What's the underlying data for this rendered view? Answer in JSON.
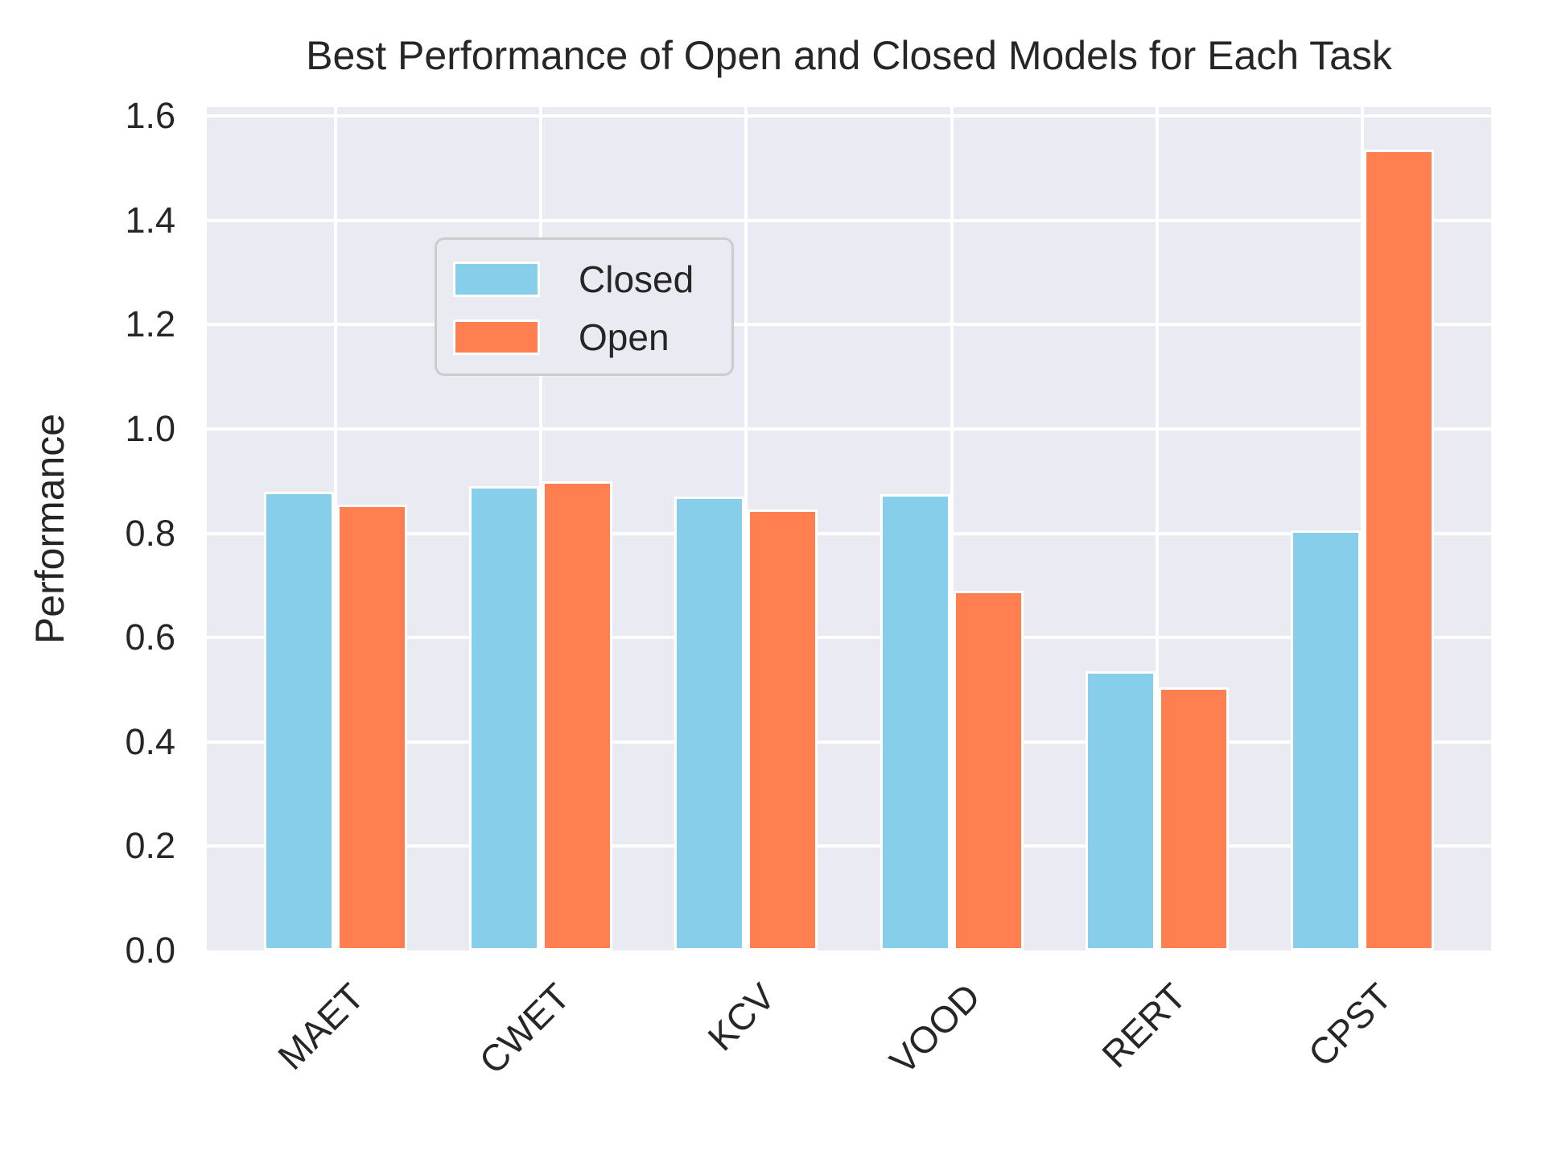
{
  "chart_data": {
    "type": "bar",
    "title": "Best Performance of Open and Closed Models for Each Task",
    "ylabel": "Performance",
    "xlabel": "",
    "categories": [
      "MAET",
      "CWET",
      "KCV",
      "VOOD",
      "RERT",
      "CPST"
    ],
    "series": [
      {
        "name": "Closed",
        "color": "#87CEEB",
        "values": [
          0.88,
          0.89,
          0.87,
          0.875,
          0.535,
          0.805
        ]
      },
      {
        "name": "Open",
        "color": "#FF7F50",
        "values": [
          0.855,
          0.9,
          0.845,
          0.69,
          0.505,
          1.535
        ]
      }
    ],
    "yticks": [
      0.0,
      0.2,
      0.4,
      0.6,
      0.8,
      1.0,
      1.2,
      1.4,
      1.6
    ],
    "ylim": [
      0,
      1.617
    ],
    "grid": true,
    "legend_position": "upper left",
    "plot_background": "#EAEAF2",
    "grid_color": "#FFFFFF",
    "text_color": "#262626"
  }
}
